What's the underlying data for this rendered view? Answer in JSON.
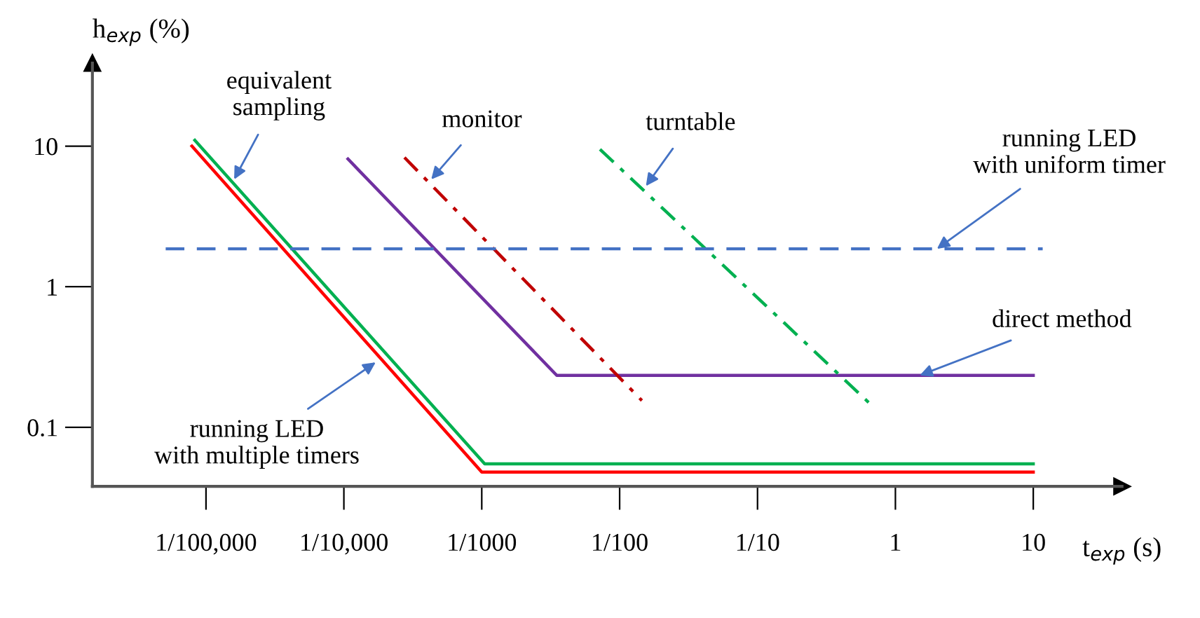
{
  "chart_data": {
    "type": "line",
    "log": "xy",
    "xlabel": "t$_{exp}$ (s)",
    "ylabel": "h$_{exp}$ (%)",
    "xlim": [
      1.5e-06,
      44
    ],
    "ylim": [
      0.038,
      39
    ],
    "xticks": [
      {
        "value": 1e-05,
        "label": "1/100,000"
      },
      {
        "value": 0.0001,
        "label": "1/10,000"
      },
      {
        "value": 0.001,
        "label": "1/1000"
      },
      {
        "value": 0.01,
        "label": "1/100"
      },
      {
        "value": 0.1,
        "label": "1/10"
      },
      1,
      10
    ],
    "yticks": [
      0.1,
      1,
      10
    ],
    "grid": false,
    "legend": false,
    "marker": "none",
    "series": [
      {
        "color": "#ff0000",
        "line_style": "solid",
        "x": [
          7.9e-06,
          0.001,
          10
        ],
        "values": [
          10,
          0.048,
          0.048
        ]
      },
      {
        "color": "#00b050",
        "line_style": "solid",
        "x": [
          8.3e-06,
          0.00105,
          10
        ],
        "values": [
          11,
          0.055,
          0.055
        ]
      },
      {
        "color": "#7030a0",
        "line_style": "solid",
        "x": [
          0.000107,
          0.0035,
          10
        ],
        "values": [
          8.1,
          0.234,
          0.234
        ]
      },
      {
        "color": "#c00000",
        "line_style": "dashdot",
        "x": [
          0.000275,
          0.0145
        ],
        "values": [
          8.3,
          0.155
        ]
      },
      {
        "color": "#00b050",
        "line_style": "dashdot",
        "x": [
          0.0072,
          0.65
        ],
        "values": [
          9.5,
          0.148
        ]
      },
      {
        "color": "#4472c4",
        "line_style": "dashed",
        "x": [
          5.1e-06,
          11.7
        ],
        "values": [
          1.86,
          1.86
        ]
      }
    ],
    "annotations": [
      {
        "text": "equivalent\nsampling",
        "x": 1.6e-05,
        "y": 5.8
      },
      {
        "text": "monitor",
        "x": 0.00043,
        "y": 5.8
      },
      {
        "text": "turntable",
        "x": 0.0155,
        "y": 5.2
      },
      {
        "text": "running LED\nwith uniform timer",
        "x": 2.0,
        "y": 1.86
      },
      {
        "text": "direct method",
        "x": 1.5,
        "y": 0.234
      },
      {
        "text": "running LED\nwith multiple timers",
        "x": 0.00017,
        "y": 0.29
      }
    ]
  }
}
